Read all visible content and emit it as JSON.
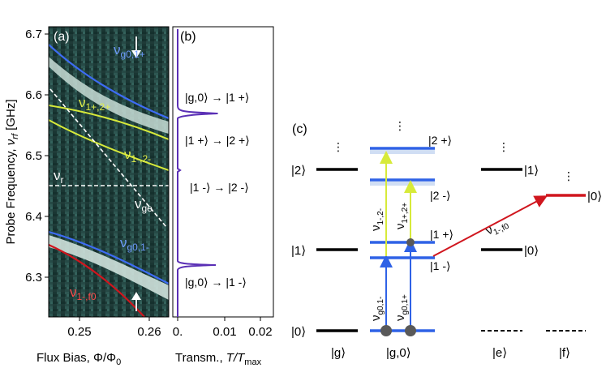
{
  "panel_a": {
    "label": "(a)",
    "ylabel": "Probe Frequency, ",
    "ylabel_sym": "ν",
    "ylabel_sub": "rf",
    "ylabel_unit": " [GHz]",
    "xlabel": "Flux Bias, Φ/Φ",
    "xlabel_sub": "0",
    "yticks": [
      "6.7",
      "6.6",
      "6.5",
      "6.4",
      "6.3"
    ],
    "xticks": [
      "0.25",
      "0.26"
    ],
    "curve_labels": {
      "g01p": {
        "main": "ν",
        "sub": "g0,1+",
        "color": "#6f9cff"
      },
      "p12p": {
        "main": "ν",
        "sub": "1+,2+",
        "color": "#e3f04a"
      },
      "m12m": {
        "main": "ν",
        "sub": "1-,2-",
        "color": "#e3f04a"
      },
      "r": {
        "main": "ν",
        "sub": "r",
        "color": "#ffffff"
      },
      "ge": {
        "main": "ν",
        "sub": "ge",
        "color": "#ffffff"
      },
      "g01m": {
        "main": "ν",
        "sub": "g0,1-",
        "color": "#6f9cff"
      },
      "mf0": {
        "main": "ν",
        "sub": "1-,f0",
        "color": "#ff4a4a"
      }
    }
  },
  "panel_b": {
    "label": "(b)",
    "xlabel": "Transm., ",
    "xlabel_sym": "T/T",
    "xlabel_sub": "max",
    "xticks": [
      "0.",
      "0.01",
      "0.02"
    ],
    "transitions": [
      {
        "from": "|g,0⟩",
        "to": "|1 +⟩"
      },
      {
        "from": "|1 +⟩",
        "to": "|2 +⟩"
      },
      {
        "from": "|1 -⟩",
        "to": "|2 -⟩"
      },
      {
        "from": "|g,0⟩",
        "to": "|1 -⟩"
      }
    ]
  },
  "panel_c": {
    "label": "(c)",
    "columns": [
      "|g⟩",
      "|g,0⟩",
      "|e⟩",
      "|f⟩"
    ],
    "g_levels": [
      "|2⟩",
      "|1⟩",
      "|0⟩"
    ],
    "dressed_levels": [
      "|2 +⟩",
      "|2 -⟩",
      "|1 +⟩",
      "|1 -⟩"
    ],
    "e_levels": [
      "|1⟩",
      "|0⟩"
    ],
    "f_levels": [
      "|0⟩"
    ],
    "arrow_labels": {
      "m12m": {
        "main": "ν",
        "sub": "1-,2-"
      },
      "p12p": {
        "main": "ν",
        "sub": "1+,2+"
      },
      "g01m": {
        "main": "ν",
        "sub": "g0,1-"
      },
      "g01p": {
        "main": "ν",
        "sub": "g0,1+"
      },
      "mf0": {
        "main": "ν",
        "sub": "1-,f0"
      }
    },
    "ellipsis": "⋮"
  }
}
